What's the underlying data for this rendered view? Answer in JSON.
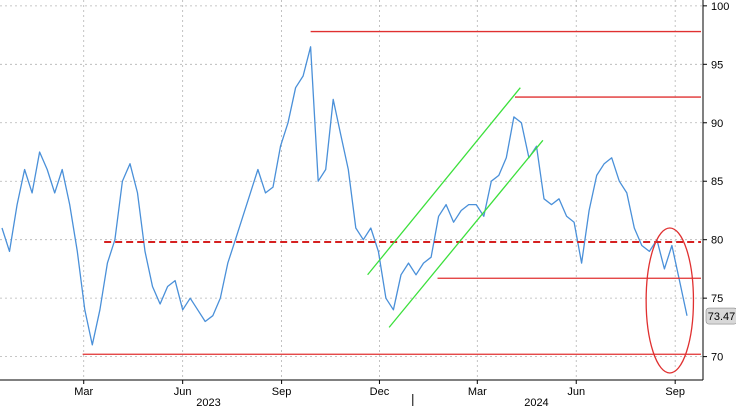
{
  "chart_data": {
    "type": "line",
    "title": "",
    "xlabel": "",
    "ylabel": "",
    "ylim": [
      68,
      100.5
    ],
    "y_ticks": [
      70,
      75,
      80,
      85,
      90,
      95,
      100
    ],
    "x_range": [
      "2022-12-15",
      "2024-09-12"
    ],
    "month_ticks": [
      {
        "label": "Mar",
        "x": "2023-03-01"
      },
      {
        "label": "Jun",
        "x": "2023-06-01"
      },
      {
        "label": "Sep",
        "x": "2023-09-01"
      },
      {
        "label": "Dec",
        "x": "2023-12-01"
      },
      {
        "label": "Mar",
        "x": "2024-03-01"
      },
      {
        "label": "Jun",
        "x": "2024-06-01"
      },
      {
        "label": "Sep",
        "x": "2024-09-01"
      }
    ],
    "year_labels": [
      {
        "label": "2023",
        "x": "2023-06-25"
      },
      {
        "label": "2024",
        "x": "2024-04-25"
      }
    ],
    "year_divider": "2024-01-01",
    "grid": true,
    "last_value": "73.47",
    "series": [
      {
        "color": "#4a90d9",
        "points": [
          [
            "2022-12-15",
            81
          ],
          [
            "2022-12-22",
            79
          ],
          [
            "2022-12-29",
            83
          ],
          [
            "2023-01-05",
            86
          ],
          [
            "2023-01-12",
            84
          ],
          [
            "2023-01-19",
            87.5
          ],
          [
            "2023-01-26",
            86
          ],
          [
            "2023-02-02",
            84
          ],
          [
            "2023-02-09",
            86
          ],
          [
            "2023-02-16",
            83
          ],
          [
            "2023-02-23",
            79
          ],
          [
            "2023-03-02",
            74
          ],
          [
            "2023-03-09",
            71
          ],
          [
            "2023-03-16",
            74
          ],
          [
            "2023-03-23",
            78
          ],
          [
            "2023-03-30",
            80
          ],
          [
            "2023-04-06",
            85
          ],
          [
            "2023-04-13",
            86.5
          ],
          [
            "2023-04-20",
            84
          ],
          [
            "2023-04-27",
            79
          ],
          [
            "2023-05-04",
            76
          ],
          [
            "2023-05-11",
            74.5
          ],
          [
            "2023-05-18",
            76
          ],
          [
            "2023-05-25",
            76.5
          ],
          [
            "2023-06-01",
            74
          ],
          [
            "2023-06-08",
            75
          ],
          [
            "2023-06-15",
            74
          ],
          [
            "2023-06-22",
            73
          ],
          [
            "2023-06-29",
            73.5
          ],
          [
            "2023-07-06",
            75
          ],
          [
            "2023-07-13",
            78
          ],
          [
            "2023-07-20",
            80
          ],
          [
            "2023-07-27",
            82
          ],
          [
            "2023-08-03",
            84
          ],
          [
            "2023-08-10",
            86
          ],
          [
            "2023-08-17",
            84
          ],
          [
            "2023-08-24",
            84.5
          ],
          [
            "2023-08-31",
            88
          ],
          [
            "2023-09-07",
            90
          ],
          [
            "2023-09-14",
            93
          ],
          [
            "2023-09-21",
            94
          ],
          [
            "2023-09-28",
            96.5
          ],
          [
            "2023-10-05",
            85
          ],
          [
            "2023-10-12",
            86
          ],
          [
            "2023-10-19",
            92
          ],
          [
            "2023-10-26",
            89
          ],
          [
            "2023-11-02",
            86
          ],
          [
            "2023-11-09",
            81
          ],
          [
            "2023-11-16",
            80
          ],
          [
            "2023-11-23",
            81
          ],
          [
            "2023-11-30",
            79
          ],
          [
            "2023-12-07",
            75
          ],
          [
            "2023-12-14",
            74
          ],
          [
            "2023-12-21",
            77
          ],
          [
            "2023-12-28",
            78
          ],
          [
            "2024-01-04",
            77
          ],
          [
            "2024-01-11",
            78
          ],
          [
            "2024-01-18",
            78.5
          ],
          [
            "2024-01-25",
            82
          ],
          [
            "2024-02-01",
            83
          ],
          [
            "2024-02-08",
            81.5
          ],
          [
            "2024-02-15",
            82.5
          ],
          [
            "2024-02-22",
            83
          ],
          [
            "2024-02-29",
            83
          ],
          [
            "2024-03-07",
            82
          ],
          [
            "2024-03-14",
            85
          ],
          [
            "2024-03-21",
            85.5
          ],
          [
            "2024-03-28",
            87
          ],
          [
            "2024-04-04",
            90.5
          ],
          [
            "2024-04-11",
            90
          ],
          [
            "2024-04-18",
            87
          ],
          [
            "2024-04-25",
            88
          ],
          [
            "2024-05-02",
            83.5
          ],
          [
            "2024-05-09",
            83
          ],
          [
            "2024-05-16",
            83.5
          ],
          [
            "2024-05-23",
            82
          ],
          [
            "2024-05-30",
            81.5
          ],
          [
            "2024-06-06",
            78
          ],
          [
            "2024-06-13",
            82.5
          ],
          [
            "2024-06-20",
            85.5
          ],
          [
            "2024-06-27",
            86.5
          ],
          [
            "2024-07-04",
            87
          ],
          [
            "2024-07-11",
            85
          ],
          [
            "2024-07-18",
            84
          ],
          [
            "2024-07-25",
            81
          ],
          [
            "2024-08-01",
            79.5
          ],
          [
            "2024-08-08",
            79
          ],
          [
            "2024-08-15",
            80
          ],
          [
            "2024-08-22",
            77.5
          ],
          [
            "2024-08-29",
            79.5
          ],
          [
            "2024-09-05",
            76.5
          ],
          [
            "2024-09-12",
            73.5
          ]
        ]
      }
    ],
    "annotations": [
      {
        "type": "hline",
        "color": "#e03030",
        "y": 97.8,
        "from": "2023-09-28",
        "to": "2024-09-25"
      },
      {
        "type": "hline",
        "color": "#e03030",
        "y": 92.2,
        "from": "2024-04-05",
        "to": "2024-09-25"
      },
      {
        "type": "hline",
        "color": "#e03030",
        "y": 76.7,
        "from": "2024-01-24",
        "to": "2024-09-25"
      },
      {
        "type": "hline",
        "color": "#e03030",
        "y": 70.2,
        "from": "2023-02-28",
        "to": "2024-09-25"
      },
      {
        "type": "hline",
        "color": "#d62020",
        "dashed": true,
        "y": 79.8,
        "from": "2023-03-20",
        "to": "2024-09-25"
      },
      {
        "type": "segment",
        "color": "#3ce03c",
        "from": [
          "2023-11-20",
          77
        ],
        "to": [
          "2024-04-10",
          93
        ]
      },
      {
        "type": "segment",
        "color": "#3ce03c",
        "from": [
          "2023-12-10",
          72.5
        ],
        "to": [
          "2024-05-01",
          88.5
        ]
      },
      {
        "type": "ellipse",
        "color": "#e03030",
        "cx": "2024-08-27",
        "cy": 74.8,
        "rx_days": 22,
        "ry": 6.2
      }
    ]
  }
}
